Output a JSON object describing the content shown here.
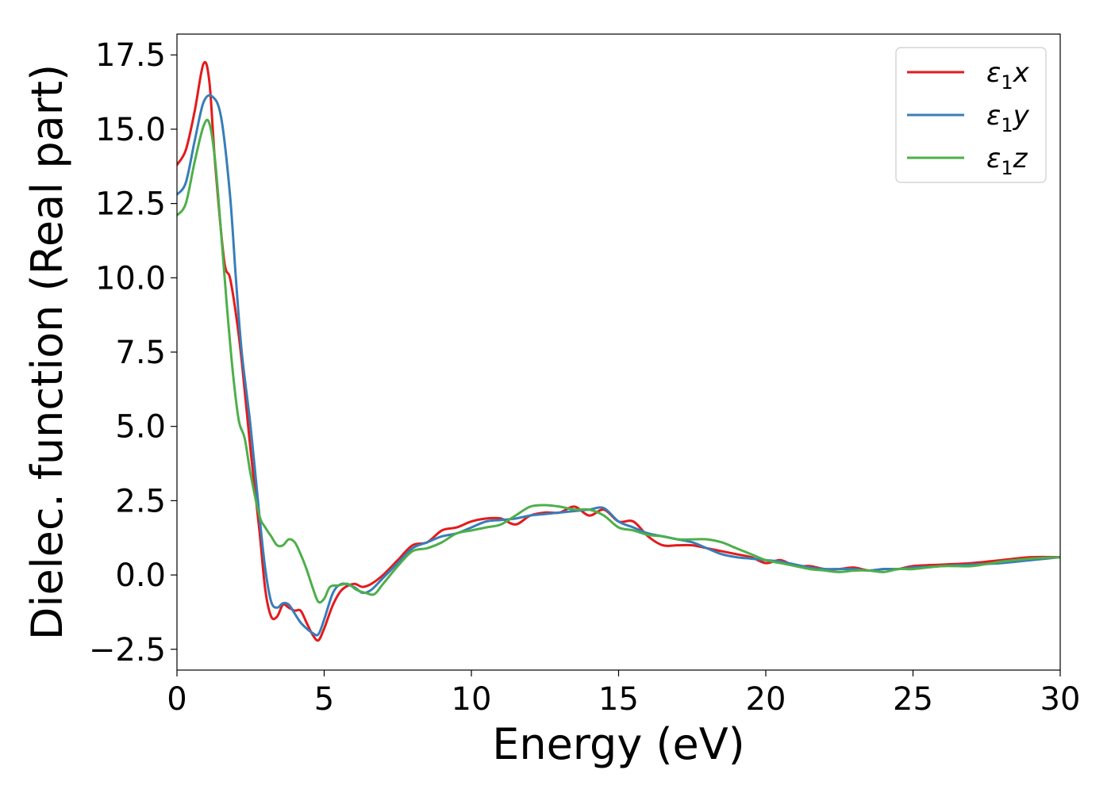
{
  "chart_data": {
    "type": "line",
    "title": "",
    "xlabel": "Energy (eV)",
    "ylabel": "Dielec. function (Real part)",
    "xlim": [
      0,
      30
    ],
    "ylim": [
      -3.2,
      18.2
    ],
    "xticks": [
      0,
      5,
      10,
      15,
      20,
      25,
      30
    ],
    "xtick_labels": [
      "0",
      "5",
      "10",
      "15",
      "20",
      "25",
      "30"
    ],
    "yticks": [
      -2.5,
      0.0,
      2.5,
      5.0,
      7.5,
      10.0,
      12.5,
      15.0,
      17.5
    ],
    "ytick_labels": [
      "−2.5",
      "0.0",
      "2.5",
      "5.0",
      "7.5",
      "10.0",
      "12.5",
      "15.0",
      "17.5"
    ],
    "grid": false,
    "legend_position": "top-right",
    "series": [
      {
        "name": "ε₁x",
        "legend_main": "ε",
        "legend_sub": "1",
        "legend_tail": "x",
        "color": "#e41a1c",
        "x": [
          0,
          0.3,
          0.6,
          0.9,
          1.1,
          1.3,
          1.6,
          1.8,
          2.0,
          2.2,
          2.5,
          2.8,
          3.0,
          3.2,
          3.4,
          3.6,
          3.8,
          4.0,
          4.2,
          4.4,
          4.6,
          4.8,
          5.0,
          5.3,
          5.6,
          6.0,
          6.3,
          6.6,
          7.0,
          7.5,
          8.0,
          8.5,
          9.0,
          9.5,
          10.0,
          10.5,
          11.0,
          11.5,
          12.0,
          12.5,
          13.0,
          13.5,
          14.0,
          14.5,
          15.0,
          15.5,
          16.0,
          16.5,
          17.0,
          17.5,
          18.0,
          18.5,
          19.0,
          19.5,
          20.0,
          20.5,
          21.0,
          21.5,
          22.0,
          22.5,
          23.0,
          23.5,
          24.0,
          24.5,
          25.0,
          26.0,
          27.0,
          28.0,
          29.0,
          30.0
        ],
        "y": [
          13.8,
          14.3,
          15.6,
          17.2,
          16.6,
          13.8,
          10.6,
          10.0,
          8.8,
          7.2,
          4.2,
          1.5,
          -0.5,
          -1.4,
          -1.4,
          -1.0,
          -1.1,
          -1.2,
          -1.2,
          -1.6,
          -2.0,
          -2.2,
          -1.8,
          -1.0,
          -0.5,
          -0.3,
          -0.4,
          -0.3,
          0.0,
          0.5,
          1.0,
          1.1,
          1.5,
          1.6,
          1.8,
          1.9,
          1.9,
          1.7,
          2.0,
          2.1,
          2.1,
          2.3,
          2.0,
          2.2,
          1.8,
          1.8,
          1.3,
          1.0,
          1.0,
          1.0,
          0.9,
          0.8,
          0.7,
          0.6,
          0.4,
          0.5,
          0.3,
          0.3,
          0.2,
          0.2,
          0.25,
          0.15,
          0.2,
          0.2,
          0.3,
          0.35,
          0.4,
          0.5,
          0.6,
          0.6
        ]
      },
      {
        "name": "ε₁y",
        "legend_main": "ε",
        "legend_sub": "1",
        "legend_tail": "y",
        "color": "#377eb8",
        "x": [
          0,
          0.3,
          0.6,
          0.9,
          1.2,
          1.5,
          1.8,
          2.0,
          2.2,
          2.5,
          2.8,
          3.0,
          3.2,
          3.4,
          3.6,
          3.8,
          4.0,
          4.2,
          4.4,
          4.6,
          4.8,
          5.0,
          5.3,
          5.6,
          6.0,
          6.3,
          6.6,
          7.0,
          7.5,
          8.0,
          8.5,
          9.0,
          9.5,
          10.0,
          10.5,
          11.0,
          11.5,
          12.0,
          12.5,
          13.0,
          13.5,
          14.0,
          14.5,
          15.0,
          15.5,
          16.0,
          16.5,
          17.0,
          17.5,
          18.0,
          18.5,
          19.0,
          19.5,
          20.0,
          20.5,
          21.0,
          21.5,
          22.0,
          22.5,
          23.0,
          23.5,
          24.0,
          24.5,
          25.0,
          26.0,
          27.0,
          28.0,
          29.0,
          30.0
        ],
        "y": [
          12.8,
          13.2,
          14.6,
          15.9,
          16.1,
          15.4,
          12.8,
          10.0,
          7.5,
          5.0,
          2.0,
          0.2,
          -0.9,
          -1.1,
          -0.95,
          -1.0,
          -1.3,
          -1.6,
          -1.8,
          -1.95,
          -2.0,
          -1.5,
          -0.6,
          -0.3,
          -0.4,
          -0.6,
          -0.5,
          -0.1,
          0.4,
          0.9,
          1.1,
          1.3,
          1.4,
          1.6,
          1.8,
          1.85,
          1.9,
          2.0,
          2.05,
          2.1,
          2.15,
          2.2,
          2.25,
          1.8,
          1.6,
          1.4,
          1.3,
          1.2,
          1.1,
          0.9,
          0.7,
          0.6,
          0.55,
          0.5,
          0.45,
          0.35,
          0.25,
          0.2,
          0.2,
          0.2,
          0.15,
          0.2,
          0.2,
          0.25,
          0.3,
          0.35,
          0.4,
          0.5,
          0.6
        ]
      },
      {
        "name": "ε₁z",
        "legend_main": "ε",
        "legend_sub": "1",
        "legend_tail": "z",
        "color": "#4daf4a",
        "x": [
          0,
          0.3,
          0.6,
          0.9,
          1.1,
          1.3,
          1.5,
          1.7,
          1.9,
          2.1,
          2.3,
          2.5,
          2.8,
          3.0,
          3.2,
          3.4,
          3.6,
          3.8,
          4.0,
          4.2,
          4.4,
          4.6,
          4.8,
          5.0,
          5.2,
          5.5,
          5.8,
          6.1,
          6.4,
          6.7,
          7.0,
          7.5,
          8.0,
          8.5,
          9.0,
          9.5,
          10.0,
          10.5,
          11.0,
          11.5,
          12.0,
          12.5,
          13.0,
          13.5,
          14.0,
          14.5,
          15.0,
          15.5,
          16.0,
          16.5,
          17.0,
          17.5,
          18.0,
          18.5,
          19.0,
          19.5,
          20.0,
          20.5,
          21.0,
          21.5,
          22.0,
          22.5,
          23.0,
          23.5,
          24.0,
          24.5,
          25.0,
          26.0,
          27.0,
          28.0,
          29.0,
          30.0
        ],
        "y": [
          12.1,
          12.5,
          13.9,
          15.1,
          15.2,
          13.9,
          11.5,
          9.0,
          6.8,
          5.2,
          4.6,
          3.4,
          2.0,
          1.6,
          1.3,
          1.0,
          1.0,
          1.2,
          1.1,
          0.7,
          0.2,
          -0.4,
          -0.9,
          -0.8,
          -0.4,
          -0.35,
          -0.3,
          -0.5,
          -0.6,
          -0.65,
          -0.3,
          0.3,
          0.8,
          0.9,
          1.1,
          1.4,
          1.5,
          1.6,
          1.7,
          2.0,
          2.3,
          2.35,
          2.3,
          2.2,
          2.2,
          2.0,
          1.6,
          1.5,
          1.35,
          1.3,
          1.2,
          1.2,
          1.2,
          1.1,
          0.9,
          0.7,
          0.5,
          0.4,
          0.3,
          0.2,
          0.15,
          0.1,
          0.15,
          0.15,
          0.1,
          0.2,
          0.2,
          0.3,
          0.3,
          0.45,
          0.55,
          0.6
        ]
      }
    ]
  }
}
